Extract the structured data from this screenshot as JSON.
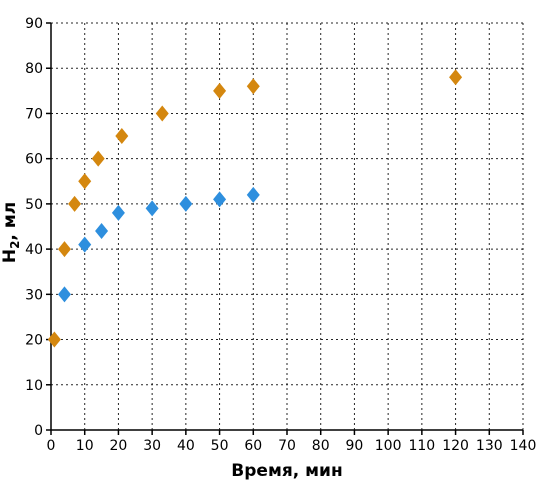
{
  "chart_data": {
    "type": "scatter",
    "title": "",
    "xlabel": "Время, мин",
    "ylabel_main": "H",
    "ylabel_sub": "2",
    "ylabel_tail": ", мл",
    "xlim": [
      0,
      140
    ],
    "ylim": [
      0,
      90
    ],
    "xticks": [
      0,
      10,
      20,
      30,
      40,
      50,
      60,
      70,
      80,
      90,
      100,
      110,
      120,
      130,
      140
    ],
    "yticks": [
      0,
      10,
      20,
      30,
      40,
      50,
      60,
      70,
      80,
      90
    ],
    "grid": true,
    "legend": "none",
    "series": [
      {
        "color": "#D4870F",
        "marker": "diamond",
        "points": [
          [
            1,
            20
          ],
          [
            4,
            40
          ],
          [
            7,
            50
          ],
          [
            10,
            55
          ],
          [
            14,
            60
          ],
          [
            21,
            65
          ],
          [
            33,
            70
          ],
          [
            50,
            75
          ],
          [
            60,
            76
          ],
          [
            120,
            78
          ]
        ]
      },
      {
        "color": "#2E8FDE",
        "marker": "diamond",
        "points": [
          [
            4,
            30
          ],
          [
            10,
            41
          ],
          [
            15,
            44
          ],
          [
            20,
            48
          ],
          [
            30,
            49
          ],
          [
            40,
            50
          ],
          [
            50,
            51
          ],
          [
            60,
            52
          ]
        ]
      }
    ]
  }
}
